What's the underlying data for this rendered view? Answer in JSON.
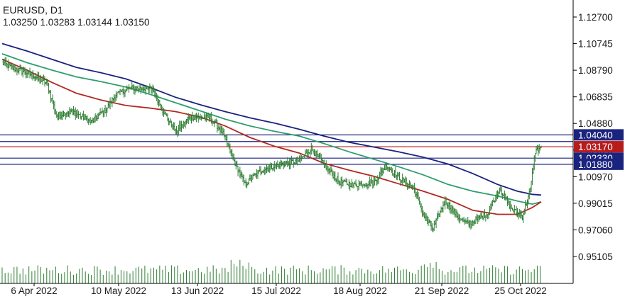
{
  "header": {
    "symbol": "EURUSD, D1",
    "ohlc": "1.03250 1.03283 1.03144 1.03150"
  },
  "chart_data": {
    "type": "candlestick",
    "symbol": "EURUSD",
    "timeframe": "D1",
    "x_tick_labels": [
      "6 Apr 2022",
      "10 May 2022",
      "13 Jun 2022",
      "15 Jul 2022",
      "18 Aug 2022",
      "21 Sep 2022",
      "25 Oct 2022"
    ],
    "y_tick_labels": [
      "1.12700",
      "1.10745",
      "1.08790",
      "1.06835",
      "1.04880",
      "1.02925",
      "1.00970",
      "0.99015",
      "0.97060",
      "0.95105"
    ],
    "ylim": [
      0.944,
      1.134
    ],
    "horizontal_levels": [
      {
        "value": 1.0404,
        "label": "1.04040",
        "color": "#1a237e",
        "boxed": true
      },
      {
        "value": 1.0355,
        "color": "#1a237e",
        "boxed": false
      },
      {
        "value": 1.0317,
        "label": "1.03170",
        "color": "#b71c1c",
        "boxed": true
      },
      {
        "value": 1.0233,
        "label": "1.02330",
        "color": "#1a237e",
        "boxed": true
      },
      {
        "value": 1.0188,
        "label": "1.01880",
        "color": "#1a237e",
        "boxed": true
      }
    ],
    "moving_averages": [
      {
        "color": "#1a237e",
        "points": [
          [
            0,
            1.1075
          ],
          [
            25,
            1.102
          ],
          [
            50,
            1.096
          ],
          [
            75,
            1.09
          ],
          [
            100,
            1.086
          ],
          [
            125,
            1.0815
          ],
          [
            150,
            1.075
          ],
          [
            175,
            1.068
          ],
          [
            200,
            1.0625
          ],
          [
            225,
            1.0575
          ],
          [
            250,
            1.053
          ],
          [
            275,
            1.049
          ],
          [
            300,
            1.0445
          ],
          [
            325,
            1.0395
          ],
          [
            350,
            1.035
          ],
          [
            375,
            1.0315
          ],
          [
            400,
            1.028
          ],
          [
            425,
            1.024
          ],
          [
            450,
            1.019
          ],
          [
            475,
            1.012
          ],
          [
            500,
            1.004
          ],
          [
            520,
            0.999
          ],
          [
            535,
            0.9967
          ],
          [
            544,
            0.9962
          ]
        ]
      },
      {
        "color": "#2e9e6e",
        "points": [
          [
            0,
            1.1
          ],
          [
            25,
            1.0935
          ],
          [
            50,
            1.088
          ],
          [
            75,
            1.083
          ],
          [
            100,
            1.0795
          ],
          [
            125,
            1.0755
          ],
          [
            150,
            1.07
          ],
          [
            175,
            1.064
          ],
          [
            200,
            1.058
          ],
          [
            225,
            1.052
          ],
          [
            250,
            1.047
          ],
          [
            275,
            1.043
          ],
          [
            300,
            1.0395
          ],
          [
            325,
            1.034
          ],
          [
            350,
            1.028
          ],
          [
            375,
            1.0225
          ],
          [
            400,
            1.017
          ],
          [
            425,
            1.011
          ],
          [
            450,
            1.004
          ],
          [
            475,
            0.999
          ],
          [
            500,
            0.9955
          ],
          [
            520,
            0.9918
          ],
          [
            535,
            0.9895
          ],
          [
            544,
            0.9912
          ]
        ]
      },
      {
        "color": "#b02a24",
        "points": [
          [
            0,
            1.096
          ],
          [
            25,
            1.088
          ],
          [
            50,
            1.079
          ],
          [
            75,
            1.071
          ],
          [
            100,
            1.066
          ],
          [
            125,
            1.062
          ],
          [
            150,
            1.06
          ],
          [
            175,
            1.0575
          ],
          [
            200,
            1.0535
          ],
          [
            225,
            1.047
          ],
          [
            250,
            1.0385
          ],
          [
            275,
            1.032
          ],
          [
            300,
            1.027
          ],
          [
            325,
            1.0195
          ],
          [
            350,
            1.0145
          ],
          [
            375,
            1.01
          ],
          [
            400,
            1.0045
          ],
          [
            425,
            0.999
          ],
          [
            450,
            0.993
          ],
          [
            475,
            0.985
          ],
          [
            500,
            0.982
          ],
          [
            520,
            0.982
          ],
          [
            535,
            0.987
          ],
          [
            544,
            0.9912
          ]
        ]
      }
    ],
    "candle_keypoints": [
      [
        0,
        1.0935
      ],
      [
        12,
        1.0892
      ],
      [
        28,
        1.0853
      ],
      [
        45,
        1.0784
      ],
      [
        55,
        1.0545
      ],
      [
        70,
        1.0581
      ],
      [
        90,
        1.0497
      ],
      [
        105,
        1.0592
      ],
      [
        115,
        1.0702
      ],
      [
        130,
        1.0748
      ],
      [
        152,
        1.0741
      ],
      [
        162,
        1.0584
      ],
      [
        175,
        1.0427
      ],
      [
        190,
        1.0536
      ],
      [
        210,
        1.0526
      ],
      [
        222,
        1.0429
      ],
      [
        235,
        1.0197
      ],
      [
        245,
        1.004
      ],
      [
        262,
        1.0148
      ],
      [
        280,
        1.0187
      ],
      [
        300,
        1.0215
      ],
      [
        312,
        1.0306
      ],
      [
        325,
        1.0185
      ],
      [
        340,
        1.006
      ],
      [
        355,
        1.0036
      ],
      [
        375,
        1.0054
      ],
      [
        388,
        1.018
      ],
      [
        400,
        1.009
      ],
      [
        415,
        1.0024
      ],
      [
        425,
        0.982
      ],
      [
        435,
        0.9714
      ],
      [
        447,
        0.9923
      ],
      [
        460,
        0.9799
      ],
      [
        470,
        0.9748
      ],
      [
        490,
        0.9826
      ],
      [
        502,
        1.001
      ],
      [
        515,
        0.9855
      ],
      [
        525,
        0.9805
      ],
      [
        533,
        1.0
      ],
      [
        538,
        1.0283
      ],
      [
        544,
        1.0315
      ]
    ],
    "volume_note": "daily volume bars along bottom"
  }
}
